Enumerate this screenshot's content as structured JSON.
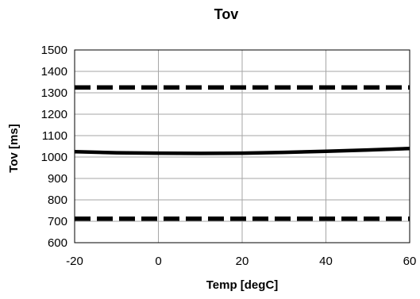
{
  "chart_data": {
    "type": "line",
    "title": "Tov",
    "xlabel": "Temp [degC]",
    "ylabel": "Tov [ms]",
    "xlim": [
      -20,
      60
    ],
    "ylim": [
      600,
      1500
    ],
    "x_ticks": [
      "-20",
      "0",
      "20",
      "40",
      "60"
    ],
    "y_ticks": [
      "600",
      "700",
      "800",
      "900",
      "1000",
      "1100",
      "1200",
      "1300",
      "1400",
      "1500"
    ],
    "grid": true,
    "legend": "none",
    "series": [
      {
        "style": "dashed",
        "color": "#000000",
        "x": [
          -20,
          60
        ],
        "y": [
          1325,
          1325
        ]
      },
      {
        "style": "solid",
        "color": "#000000",
        "x": [
          -20,
          -10,
          0,
          10,
          20,
          30,
          40,
          50,
          60
        ],
        "y": [
          1025,
          1020,
          1018,
          1017,
          1018,
          1022,
          1027,
          1033,
          1040
        ]
      },
      {
        "style": "dashed",
        "color": "#000000",
        "x": [
          -20,
          60
        ],
        "y": [
          712,
          712
        ]
      }
    ]
  }
}
